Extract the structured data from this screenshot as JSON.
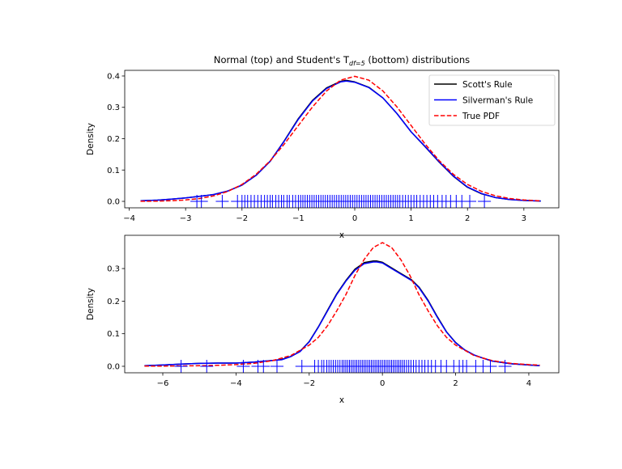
{
  "chart_data": [
    {
      "type": "line",
      "title_main": "Normal (top) and Student's T",
      "title_sub": "df=5",
      "title_end": " (bottom) distributions",
      "xlabel": "x",
      "ylabel": "Density",
      "xlim": [
        -4.08,
        3.62
      ],
      "ylim": [
        -0.0206,
        0.418
      ],
      "xticks": [
        -4,
        -3,
        -2,
        -1,
        0,
        1,
        2,
        3
      ],
      "yticks": [
        0.0,
        0.1,
        0.2,
        0.3,
        0.4
      ],
      "ytick_labels": [
        "0.0",
        "0.1",
        "0.2",
        "0.3",
        "0.4"
      ],
      "legend": {
        "position": "upper right"
      },
      "series": [
        {
          "name": "Scott's Rule",
          "color": "#000000",
          "style": "solid",
          "x": [
            -3.8,
            -3.5,
            -3.25,
            -3,
            -2.75,
            -2.5,
            -2.25,
            -2,
            -1.75,
            -1.5,
            -1.25,
            -1,
            -0.75,
            -0.5,
            -0.25,
            -0.15,
            0,
            0.25,
            0.5,
            0.75,
            1,
            1.25,
            1.5,
            1.75,
            2,
            2.25,
            2.5,
            2.75,
            3,
            3.3
          ],
          "y": [
            0.002,
            0.004,
            0.007,
            0.011,
            0.016,
            0.022,
            0.033,
            0.052,
            0.083,
            0.128,
            0.193,
            0.264,
            0.322,
            0.362,
            0.383,
            0.386,
            0.381,
            0.364,
            0.33,
            0.28,
            0.222,
            0.174,
            0.125,
            0.08,
            0.045,
            0.024,
            0.012,
            0.006,
            0.003,
            0.001
          ]
        },
        {
          "name": "Silverman's Rule",
          "color": "#0000ff",
          "style": "solid",
          "x": [
            -3.8,
            -3.5,
            -3.25,
            -3,
            -2.75,
            -2.5,
            -2.25,
            -2,
            -1.75,
            -1.5,
            -1.25,
            -1,
            -0.75,
            -0.5,
            -0.25,
            -0.15,
            0,
            0.25,
            0.5,
            0.75,
            1,
            1.25,
            1.5,
            1.75,
            2,
            2.25,
            2.5,
            2.75,
            3,
            3.3
          ],
          "y": [
            0.002,
            0.004,
            0.007,
            0.011,
            0.016,
            0.022,
            0.033,
            0.052,
            0.083,
            0.128,
            0.192,
            0.262,
            0.32,
            0.36,
            0.381,
            0.384,
            0.38,
            0.363,
            0.33,
            0.28,
            0.222,
            0.175,
            0.126,
            0.081,
            0.046,
            0.025,
            0.012,
            0.006,
            0.003,
            0.001
          ]
        },
        {
          "name": "True PDF",
          "color": "#ff0000",
          "style": "dashed",
          "x": [
            -3.8,
            -3.5,
            -3.25,
            -3,
            -2.75,
            -2.5,
            -2.25,
            -2,
            -1.75,
            -1.5,
            -1.25,
            -1,
            -0.75,
            -0.5,
            -0.25,
            0,
            0.25,
            0.5,
            0.75,
            1,
            1.25,
            1.5,
            1.75,
            2,
            2.25,
            2.5,
            2.75,
            3,
            3.3
          ],
          "y": [
            0.0003,
            0.0009,
            0.002,
            0.0044,
            0.0091,
            0.0175,
            0.0317,
            0.054,
            0.0863,
            0.1295,
            0.1826,
            0.242,
            0.3011,
            0.3521,
            0.3867,
            0.3989,
            0.3867,
            0.3521,
            0.3011,
            0.242,
            0.1826,
            0.1295,
            0.0863,
            0.054,
            0.0317,
            0.0175,
            0.0091,
            0.0044,
            0.0017
          ]
        }
      ],
      "rug": {
        "color": "#0000ff",
        "marker": "+",
        "x": [
          -2.8,
          -2.72,
          -2.35,
          -2.08,
          -2.0,
          -1.95,
          -1.9,
          -1.84,
          -1.78,
          -1.72,
          -1.66,
          -1.6,
          -1.55,
          -1.5,
          -1.46,
          -1.4,
          -1.35,
          -1.3,
          -1.26,
          -1.2,
          -1.16,
          -1.1,
          -1.05,
          -1.0,
          -0.96,
          -0.92,
          -0.88,
          -0.84,
          -0.8,
          -0.76,
          -0.72,
          -0.68,
          -0.64,
          -0.6,
          -0.56,
          -0.52,
          -0.48,
          -0.44,
          -0.4,
          -0.36,
          -0.32,
          -0.28,
          -0.24,
          -0.2,
          -0.16,
          -0.12,
          -0.08,
          -0.04,
          0.0,
          0.04,
          0.08,
          0.12,
          0.16,
          0.2,
          0.24,
          0.28,
          0.32,
          0.36,
          0.4,
          0.44,
          0.48,
          0.52,
          0.56,
          0.6,
          0.64,
          0.68,
          0.72,
          0.76,
          0.8,
          0.85,
          0.9,
          0.95,
          1.0,
          1.05,
          1.1,
          1.16,
          1.22,
          1.28,
          1.34,
          1.4,
          1.47,
          1.55,
          1.62,
          1.7,
          1.8,
          1.9,
          2.04,
          2.3
        ]
      }
    },
    {
      "type": "line",
      "xlabel": "x",
      "ylabel": "Density",
      "xlim": [
        -7.04,
        4.82
      ],
      "ylim": [
        -0.0199,
        0.402
      ],
      "xticks": [
        -6,
        -4,
        -2,
        0,
        2,
        4
      ],
      "yticks": [
        0.0,
        0.1,
        0.2,
        0.3
      ],
      "ytick_labels": [
        "0.0",
        "0.1",
        "0.2",
        "0.3"
      ],
      "series": [
        {
          "name": "Scott's Rule",
          "color": "#000000",
          "style": "solid",
          "x": [
            -6.5,
            -6,
            -5.5,
            -5,
            -4.5,
            -4,
            -3.5,
            -3,
            -2.75,
            -2.5,
            -2.25,
            -2,
            -1.75,
            -1.5,
            -1.25,
            -1,
            -0.75,
            -0.5,
            -0.25,
            -0.15,
            0,
            0.25,
            0.5,
            0.8,
            1,
            1.25,
            1.5,
            1.75,
            2,
            2.25,
            2.5,
            2.75,
            3,
            3.5,
            4,
            4.3
          ],
          "y": [
            0.002,
            0.004,
            0.007,
            0.009,
            0.01,
            0.01,
            0.013,
            0.018,
            0.021,
            0.03,
            0.046,
            0.076,
            0.121,
            0.172,
            0.222,
            0.263,
            0.298,
            0.318,
            0.323,
            0.323,
            0.319,
            0.302,
            0.285,
            0.265,
            0.243,
            0.202,
            0.152,
            0.106,
            0.073,
            0.05,
            0.035,
            0.025,
            0.016,
            0.008,
            0.004,
            0.002
          ]
        },
        {
          "name": "Silverman's Rule",
          "color": "#0000ff",
          "style": "solid",
          "x": [
            -6.5,
            -6,
            -5.5,
            -5,
            -4.5,
            -4,
            -3.5,
            -3,
            -2.75,
            -2.5,
            -2.25,
            -2,
            -1.75,
            -1.5,
            -1.25,
            -1,
            -0.75,
            -0.5,
            -0.25,
            -0.15,
            0,
            0.25,
            0.5,
            0.8,
            1,
            1.25,
            1.5,
            1.75,
            2,
            2.25,
            2.5,
            2.75,
            3,
            3.5,
            4,
            4.3
          ],
          "y": [
            0.002,
            0.004,
            0.007,
            0.009,
            0.01,
            0.01,
            0.013,
            0.018,
            0.02,
            0.03,
            0.045,
            0.075,
            0.12,
            0.17,
            0.22,
            0.261,
            0.295,
            0.315,
            0.32,
            0.32,
            0.317,
            0.3,
            0.283,
            0.263,
            0.241,
            0.2,
            0.15,
            0.105,
            0.072,
            0.05,
            0.035,
            0.025,
            0.016,
            0.008,
            0.004,
            0.002
          ]
        },
        {
          "name": "True PDF",
          "color": "#ff0000",
          "style": "dashed",
          "x": [
            -6.5,
            -6,
            -5.5,
            -5,
            -4.5,
            -4,
            -3.5,
            -3,
            -2.5,
            -2,
            -1.75,
            -1.5,
            -1.25,
            -1,
            -0.75,
            -0.5,
            -0.25,
            0,
            0.25,
            0.5,
            0.75,
            1,
            1.25,
            1.5,
            1.75,
            2,
            2.5,
            3,
            3.5,
            4,
            4.3
          ],
          "y": [
            0.0005,
            0.0007,
            0.0011,
            0.0018,
            0.0029,
            0.0051,
            0.0092,
            0.0173,
            0.0333,
            0.0651,
            0.0889,
            0.1245,
            0.1696,
            0.2197,
            0.279,
            0.3279,
            0.3645,
            0.3796,
            0.3645,
            0.3279,
            0.279,
            0.2197,
            0.1696,
            0.1245,
            0.0889,
            0.0651,
            0.0333,
            0.0173,
            0.0092,
            0.0051,
            0.0038
          ]
        }
      ],
      "rug": {
        "color": "#0000ff",
        "marker": "+",
        "x": [
          -5.5,
          -4.8,
          -3.8,
          -3.4,
          -3.25,
          -2.88,
          -2.2,
          -1.85,
          -1.75,
          -1.66,
          -1.6,
          -1.52,
          -1.46,
          -1.4,
          -1.34,
          -1.28,
          -1.22,
          -1.16,
          -1.1,
          -1.05,
          -1.0,
          -0.95,
          -0.9,
          -0.85,
          -0.8,
          -0.75,
          -0.7,
          -0.65,
          -0.6,
          -0.55,
          -0.5,
          -0.45,
          -0.4,
          -0.35,
          -0.3,
          -0.25,
          -0.2,
          -0.15,
          -0.1,
          -0.05,
          0.0,
          0.05,
          0.1,
          0.15,
          0.2,
          0.25,
          0.3,
          0.35,
          0.4,
          0.45,
          0.5,
          0.55,
          0.6,
          0.66,
          0.72,
          0.78,
          0.85,
          0.92,
          1.0,
          1.08,
          1.16,
          1.25,
          1.34,
          1.45,
          1.6,
          1.75,
          1.95,
          2.1,
          2.2,
          2.3,
          2.55,
          2.75,
          2.95,
          3.35
        ]
      }
    }
  ]
}
